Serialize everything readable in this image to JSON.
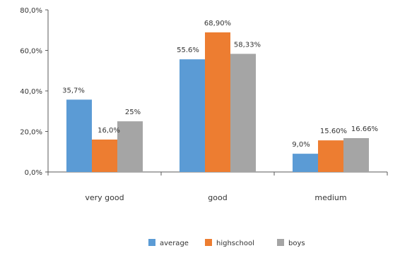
{
  "chart_data": {
    "type": "bar",
    "categories": [
      "very good",
      "good",
      "medium"
    ],
    "series": [
      {
        "name": "average",
        "values": [
          35.7,
          55.6,
          9.0
        ],
        "labels": [
          "35,7%",
          "55.6%",
          "9,0%"
        ]
      },
      {
        "name": "highschool",
        "values": [
          16.0,
          68.9,
          15.6
        ],
        "labels": [
          "16,0%",
          "68,90%",
          "15.60%"
        ]
      },
      {
        "name": "boys",
        "values": [
          25.0,
          58.3,
          16.7
        ],
        "labels": [
          "25%",
          "58,33%",
          "16.66%"
        ]
      }
    ],
    "ylim": [
      0,
      80
    ],
    "yticks": [
      0,
      20,
      40,
      60,
      80
    ],
    "ytick_labels": [
      "0,0%",
      "20,0%",
      "40,0%",
      "60,0%",
      "80,0%"
    ],
    "legend_position": "bottom",
    "grid": false
  },
  "colors": {
    "average": "#5b9bd5",
    "highschool": "#ed7d31",
    "boys": "#a5a5a5",
    "axis": "#595959"
  }
}
